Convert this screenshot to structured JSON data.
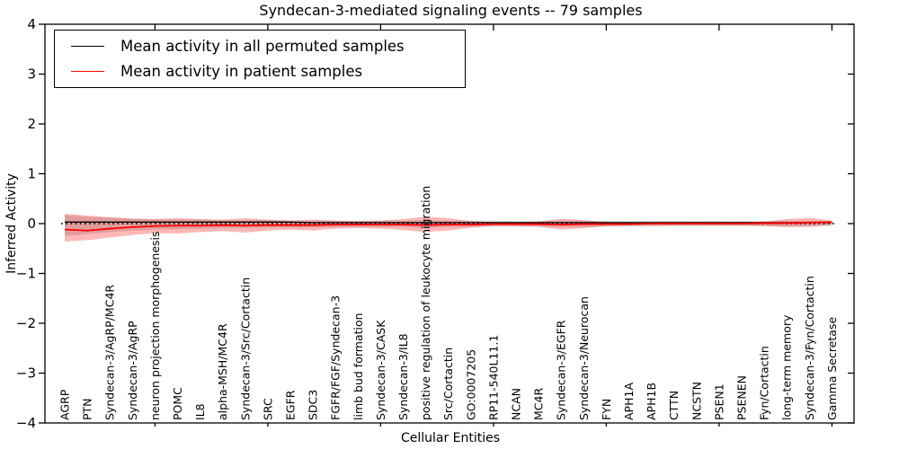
{
  "chart_data": {
    "type": "line",
    "title": "Syndecan-3-mediated signaling events -- 79 samples",
    "xlabel": "Cellular Entities",
    "ylabel": "Inferred Activity",
    "ylim": [
      -4,
      4
    ],
    "yticks": [
      4,
      3,
      2,
      1,
      0,
      -1,
      -2,
      -3,
      -4
    ],
    "grid": false,
    "legend_position": "upper left",
    "legend": [
      {
        "label": "Mean activity in all permuted samples",
        "color": "#000000"
      },
      {
        "label": "Mean activity in patient samples",
        "color": "#ff0000"
      }
    ],
    "zero_reference_line": {
      "y": 0,
      "style": "dotted",
      "color": "#000000"
    },
    "categories": [
      "AGRP",
      "PTN",
      "Syndecan-3/AgRP/MC4R",
      "Syndecan-3/AgRP",
      "neuron projection morphogenesis",
      "POMC",
      "IL8",
      "alpha-MSH/MC4R",
      "Syndecan-3/Src/Cortactin",
      "SRC",
      "EGFR",
      "SDC3",
      "FGFR/FGF/Syndecan-3",
      "limb bud formation",
      "Syndecan-3/CASK",
      "Syndecan-3/IL8",
      "positive regulation of leukocyte migration",
      "Src/Cortactin",
      "GO:0007205",
      "RP11-540L11.1",
      "NCAN",
      "MC4R",
      "Syndecan-3/EGFR",
      "Syndecan-3/Neurocan",
      "FYN",
      "APH1A",
      "APH1B",
      "CTTN",
      "NCSTN",
      "PSEN1",
      "PSENEN",
      "Fyn/Cortactin",
      "long-term memory",
      "Syndecan-3/Fyn/Cortactin",
      "Gamma Secretase"
    ],
    "series": [
      {
        "name": "Mean activity in all permuted samples",
        "color": "#000000",
        "values": [
          0.03,
          0.03,
          0.03,
          0.03,
          0.03,
          0.03,
          0.03,
          0.03,
          0.03,
          0.03,
          0.03,
          0.02,
          0.02,
          0.02,
          0.02,
          0.02,
          0.02,
          0.02,
          0.02,
          0.02,
          0.02,
          0.02,
          0.02,
          0.02,
          0.02,
          0.02,
          0.02,
          0.02,
          0.02,
          0.02,
          0.02,
          0.02,
          0.02,
          0.02,
          0.02
        ]
      },
      {
        "name": "Mean activity in patient samples",
        "color": "#ff0000",
        "values": [
          -0.12,
          -0.14,
          -0.1,
          -0.07,
          -0.05,
          -0.04,
          -0.04,
          -0.03,
          -0.04,
          -0.03,
          -0.03,
          -0.03,
          -0.02,
          -0.02,
          -0.02,
          -0.02,
          -0.03,
          -0.02,
          -0.02,
          -0.01,
          -0.01,
          -0.01,
          -0.02,
          -0.01,
          -0.01,
          -0.01,
          0.0,
          0.0,
          0.0,
          0.0,
          0.0,
          0.01,
          0.01,
          0.02,
          0.03
        ]
      }
    ],
    "bands": [
      {
        "name": "permuted-samples-std-band",
        "color": "rgba(0,0,0,0.15)",
        "upper": [
          0.17,
          0.14,
          0.12,
          0.1,
          0.09,
          0.08,
          0.08,
          0.07,
          0.07,
          0.07,
          0.06,
          0.06,
          0.06,
          0.06,
          0.06,
          0.06,
          0.07,
          0.06,
          0.06,
          0.06,
          0.05,
          0.05,
          0.06,
          0.06,
          0.05,
          0.05,
          0.05,
          0.05,
          0.05,
          0.05,
          0.05,
          0.05,
          0.06,
          0.06,
          0.05
        ],
        "lower": [
          -0.25,
          -0.21,
          -0.17,
          -0.14,
          -0.12,
          -0.11,
          -0.1,
          -0.09,
          -0.09,
          -0.08,
          -0.08,
          -0.08,
          -0.07,
          -0.07,
          -0.07,
          -0.07,
          -0.08,
          -0.07,
          -0.07,
          -0.06,
          -0.06,
          -0.06,
          -0.07,
          -0.07,
          -0.06,
          -0.06,
          -0.06,
          -0.05,
          -0.05,
          -0.05,
          -0.05,
          -0.05,
          -0.06,
          -0.06,
          -0.05
        ]
      },
      {
        "name": "patient-samples-std-band",
        "color": "rgba(255,0,0,0.28)",
        "upper": [
          0.2,
          0.16,
          0.13,
          0.1,
          0.09,
          0.11,
          0.09,
          0.08,
          0.11,
          0.08,
          0.06,
          0.08,
          0.06,
          0.05,
          0.06,
          0.09,
          0.14,
          0.11,
          0.05,
          0.03,
          0.03,
          0.04,
          0.1,
          0.07,
          0.03,
          0.02,
          0.02,
          0.02,
          0.02,
          0.02,
          0.03,
          0.04,
          0.09,
          0.12,
          0.06
        ],
        "lower": [
          -0.36,
          -0.33,
          -0.28,
          -0.23,
          -0.19,
          -0.2,
          -0.17,
          -0.15,
          -0.18,
          -0.14,
          -0.12,
          -0.14,
          -0.1,
          -0.09,
          -0.1,
          -0.13,
          -0.17,
          -0.14,
          -0.08,
          -0.05,
          -0.05,
          -0.06,
          -0.12,
          -0.09,
          -0.05,
          -0.04,
          -0.04,
          -0.04,
          -0.04,
          -0.04,
          -0.04,
          -0.05,
          -0.07,
          -0.06,
          -0.02
        ]
      }
    ]
  }
}
